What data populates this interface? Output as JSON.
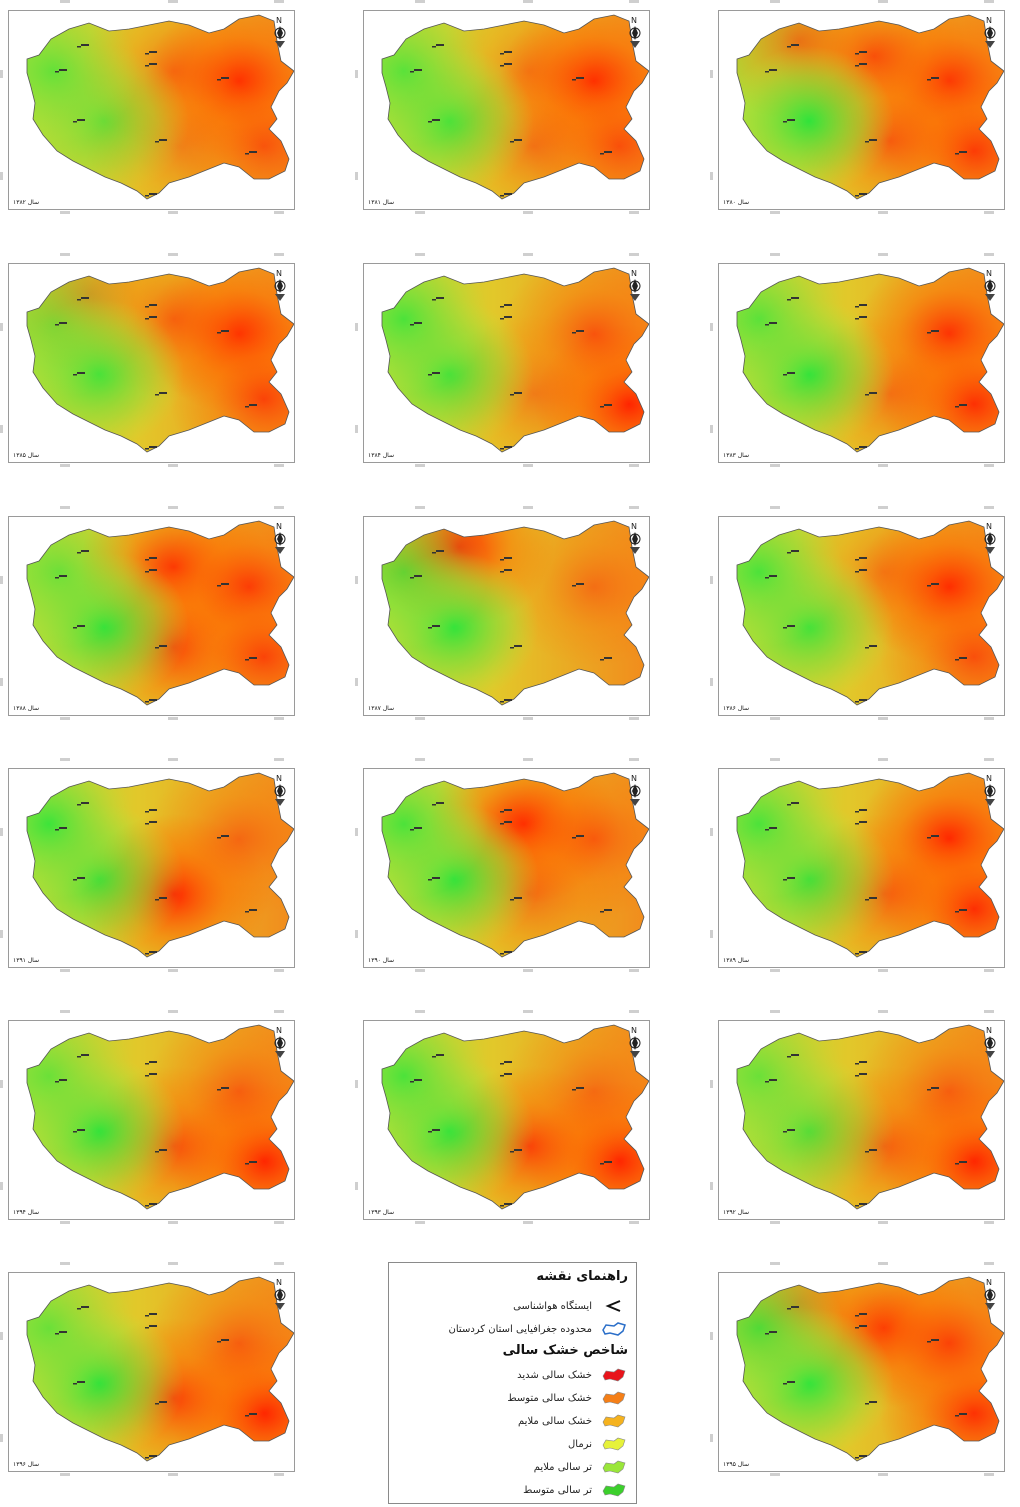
{
  "panels": [
    {
      "id": "p1382",
      "label": "سال ۱۳۸۲",
      "col": 0,
      "row": 0,
      "hot": [
        [
          230,
          70,
          1.0
        ],
        [
          165,
          60,
          0.45
        ],
        [
          255,
          135,
          0.55
        ],
        [
          170,
          135,
          0.35
        ]
      ],
      "wet": [
        [
          95,
          110,
          0.6
        ],
        [
          45,
          60,
          0.55
        ]
      ]
    },
    {
      "id": "p1381",
      "label": "سال ۱۳۸۱",
      "col": 1,
      "row": 0,
      "hot": [
        [
          230,
          70,
          1.0
        ],
        [
          165,
          60,
          0.35
        ],
        [
          255,
          135,
          0.6
        ],
        [
          170,
          135,
          0.45
        ]
      ],
      "wet": [
        [
          85,
          110,
          0.8
        ],
        [
          40,
          60,
          0.6
        ]
      ]
    },
    {
      "id": "p1380",
      "label": "سال ۱۳۸۰",
      "col": 2,
      "row": 0,
      "hot": [
        [
          230,
          70,
          0.9
        ],
        [
          155,
          45,
          0.7
        ],
        [
          255,
          140,
          0.8
        ],
        [
          170,
          130,
          0.6
        ],
        [
          80,
          30,
          0.5
        ]
      ],
      "wet": [
        [
          90,
          110,
          0.9
        ]
      ]
    },
    {
      "id": "p1385",
      "label": "سال ۱۳۸۵",
      "col": 0,
      "row": 1,
      "hot": [
        [
          230,
          70,
          1.0
        ],
        [
          165,
          55,
          0.5
        ],
        [
          255,
          135,
          0.7
        ],
        [
          80,
          30,
          0.4
        ]
      ],
      "wet": [
        [
          90,
          110,
          0.8
        ],
        [
          45,
          60,
          0.4
        ]
      ]
    },
    {
      "id": "p1384",
      "label": "سال ۱۳۸۴",
      "col": 1,
      "row": 1,
      "hot": [
        [
          265,
          140,
          1.0
        ],
        [
          230,
          70,
          0.6
        ],
        [
          170,
          130,
          0.4
        ]
      ],
      "wet": [
        [
          85,
          110,
          0.8
        ],
        [
          40,
          55,
          0.7
        ]
      ]
    },
    {
      "id": "p1383",
      "label": "سال ۱۳۸۳",
      "col": 2,
      "row": 1,
      "hot": [
        [
          230,
          70,
          0.9
        ],
        [
          255,
          140,
          0.9
        ],
        [
          170,
          130,
          0.45
        ]
      ],
      "wet": [
        [
          90,
          110,
          0.9
        ],
        [
          40,
          55,
          0.6
        ]
      ]
    },
    {
      "id": "p1388",
      "label": "سال ۱۳۸۸",
      "col": 0,
      "row": 2,
      "hot": [
        [
          165,
          50,
          0.9
        ],
        [
          165,
          130,
          0.8
        ],
        [
          240,
          70,
          0.8
        ],
        [
          255,
          140,
          0.7
        ]
      ],
      "wet": [
        [
          95,
          110,
          0.9
        ],
        [
          50,
          55,
          0.5
        ]
      ]
    },
    {
      "id": "p1387",
      "label": "سال ۱۳۸۷",
      "col": 1,
      "row": 2,
      "hot": [
        [
          95,
          30,
          1.0
        ],
        [
          230,
          70,
          0.4
        ]
      ],
      "wet": [
        [
          90,
          110,
          0.9
        ],
        [
          40,
          55,
          0.6
        ]
      ]
    },
    {
      "id": "p1386",
      "label": "سال ۱۳۸۶",
      "col": 2,
      "row": 2,
      "hot": [
        [
          230,
          70,
          1.0
        ],
        [
          255,
          140,
          0.6
        ],
        [
          165,
          55,
          0.35
        ]
      ],
      "wet": [
        [
          90,
          110,
          0.8
        ],
        [
          40,
          55,
          0.7
        ]
      ]
    },
    {
      "id": "p1391",
      "label": "سال ۱۳۹۱",
      "col": 0,
      "row": 3,
      "hot": [
        [
          165,
          125,
          1.0
        ],
        [
          230,
          70,
          0.45
        ]
      ],
      "wet": [
        [
          90,
          110,
          0.8
        ],
        [
          40,
          55,
          0.8
        ]
      ]
    },
    {
      "id": "p1390",
      "label": "سال ۱۳۹۰",
      "col": 1,
      "row": 3,
      "hot": [
        [
          160,
          55,
          1.0
        ],
        [
          230,
          70,
          0.5
        ],
        [
          165,
          125,
          0.5
        ]
      ],
      "wet": [
        [
          90,
          110,
          0.9
        ],
        [
          40,
          55,
          0.7
        ]
      ]
    },
    {
      "id": "p1389",
      "label": "سال ۱۳۸۹",
      "col": 2,
      "row": 3,
      "hot": [
        [
          230,
          70,
          1.0
        ],
        [
          255,
          140,
          0.9
        ],
        [
          165,
          125,
          0.6
        ]
      ],
      "wet": [
        [
          90,
          110,
          0.8
        ],
        [
          40,
          55,
          0.7
        ]
      ]
    },
    {
      "id": "p1394",
      "label": "سال ۱۳۹۴",
      "col": 0,
      "row": 4,
      "hot": [
        [
          255,
          140,
          1.0
        ],
        [
          165,
          125,
          0.7
        ],
        [
          230,
          70,
          0.5
        ]
      ],
      "wet": [
        [
          90,
          110,
          0.9
        ],
        [
          40,
          55,
          0.5
        ]
      ]
    },
    {
      "id": "p1393",
      "label": "سال ۱۳۹۳",
      "col": 1,
      "row": 4,
      "hot": [
        [
          255,
          140,
          1.0
        ],
        [
          165,
          125,
          0.8
        ],
        [
          230,
          70,
          0.4
        ]
      ],
      "wet": [
        [
          85,
          110,
          0.9
        ],
        [
          40,
          55,
          0.7
        ]
      ]
    },
    {
      "id": "p1392",
      "label": "سال ۱۳۹۲",
      "col": 2,
      "row": 4,
      "hot": [
        [
          255,
          140,
          1.0
        ],
        [
          165,
          125,
          0.6
        ],
        [
          230,
          70,
          0.5
        ]
      ],
      "wet": [
        [
          90,
          110,
          0.7
        ],
        [
          40,
          55,
          0.5
        ]
      ]
    },
    {
      "id": "p1396",
      "label": "سال ۱۳۹۶",
      "col": 0,
      "row": 5,
      "hot": [
        [
          255,
          140,
          1.0
        ],
        [
          165,
          125,
          0.8
        ],
        [
          230,
          70,
          0.5
        ]
      ],
      "wet": [
        [
          90,
          110,
          0.9
        ],
        [
          40,
          55,
          0.5
        ]
      ]
    },
    {
      "id": "p1395",
      "label": "سال ۱۳۹۵",
      "col": 2,
      "row": 5,
      "hot": [
        [
          165,
          55,
          0.9
        ],
        [
          255,
          140,
          0.9
        ],
        [
          230,
          70,
          0.7
        ],
        [
          80,
          30,
          0.5
        ]
      ],
      "wet": [
        [
          90,
          110,
          0.9
        ],
        [
          40,
          55,
          0.7
        ]
      ]
    }
  ],
  "legend": {
    "title": "راهنمای نقشه",
    "station": "ایستگاه هواشناسی",
    "boundary": "محدوده جغرافیایی استان کردستان",
    "index_title": "شاخص خشک سالی",
    "classes": [
      {
        "label": "خشک سالی شدید",
        "color": "#e8141b"
      },
      {
        "label": "خشک سالی متوسط",
        "color": "#f57f17"
      },
      {
        "label": "خشک سالی ملایم",
        "color": "#f5b21e"
      },
      {
        "label": "نرمال",
        "color": "#e6f23a"
      },
      {
        "label": "تر سالی ملایم",
        "color": "#9ae63a"
      },
      {
        "label": "تر سالی متوسط",
        "color": "#3ccf2c"
      }
    ]
  },
  "colors": {
    "hot": "#ff2200",
    "wet": "#1ee63c",
    "base": "#e8c22a",
    "outline": "#555555"
  }
}
